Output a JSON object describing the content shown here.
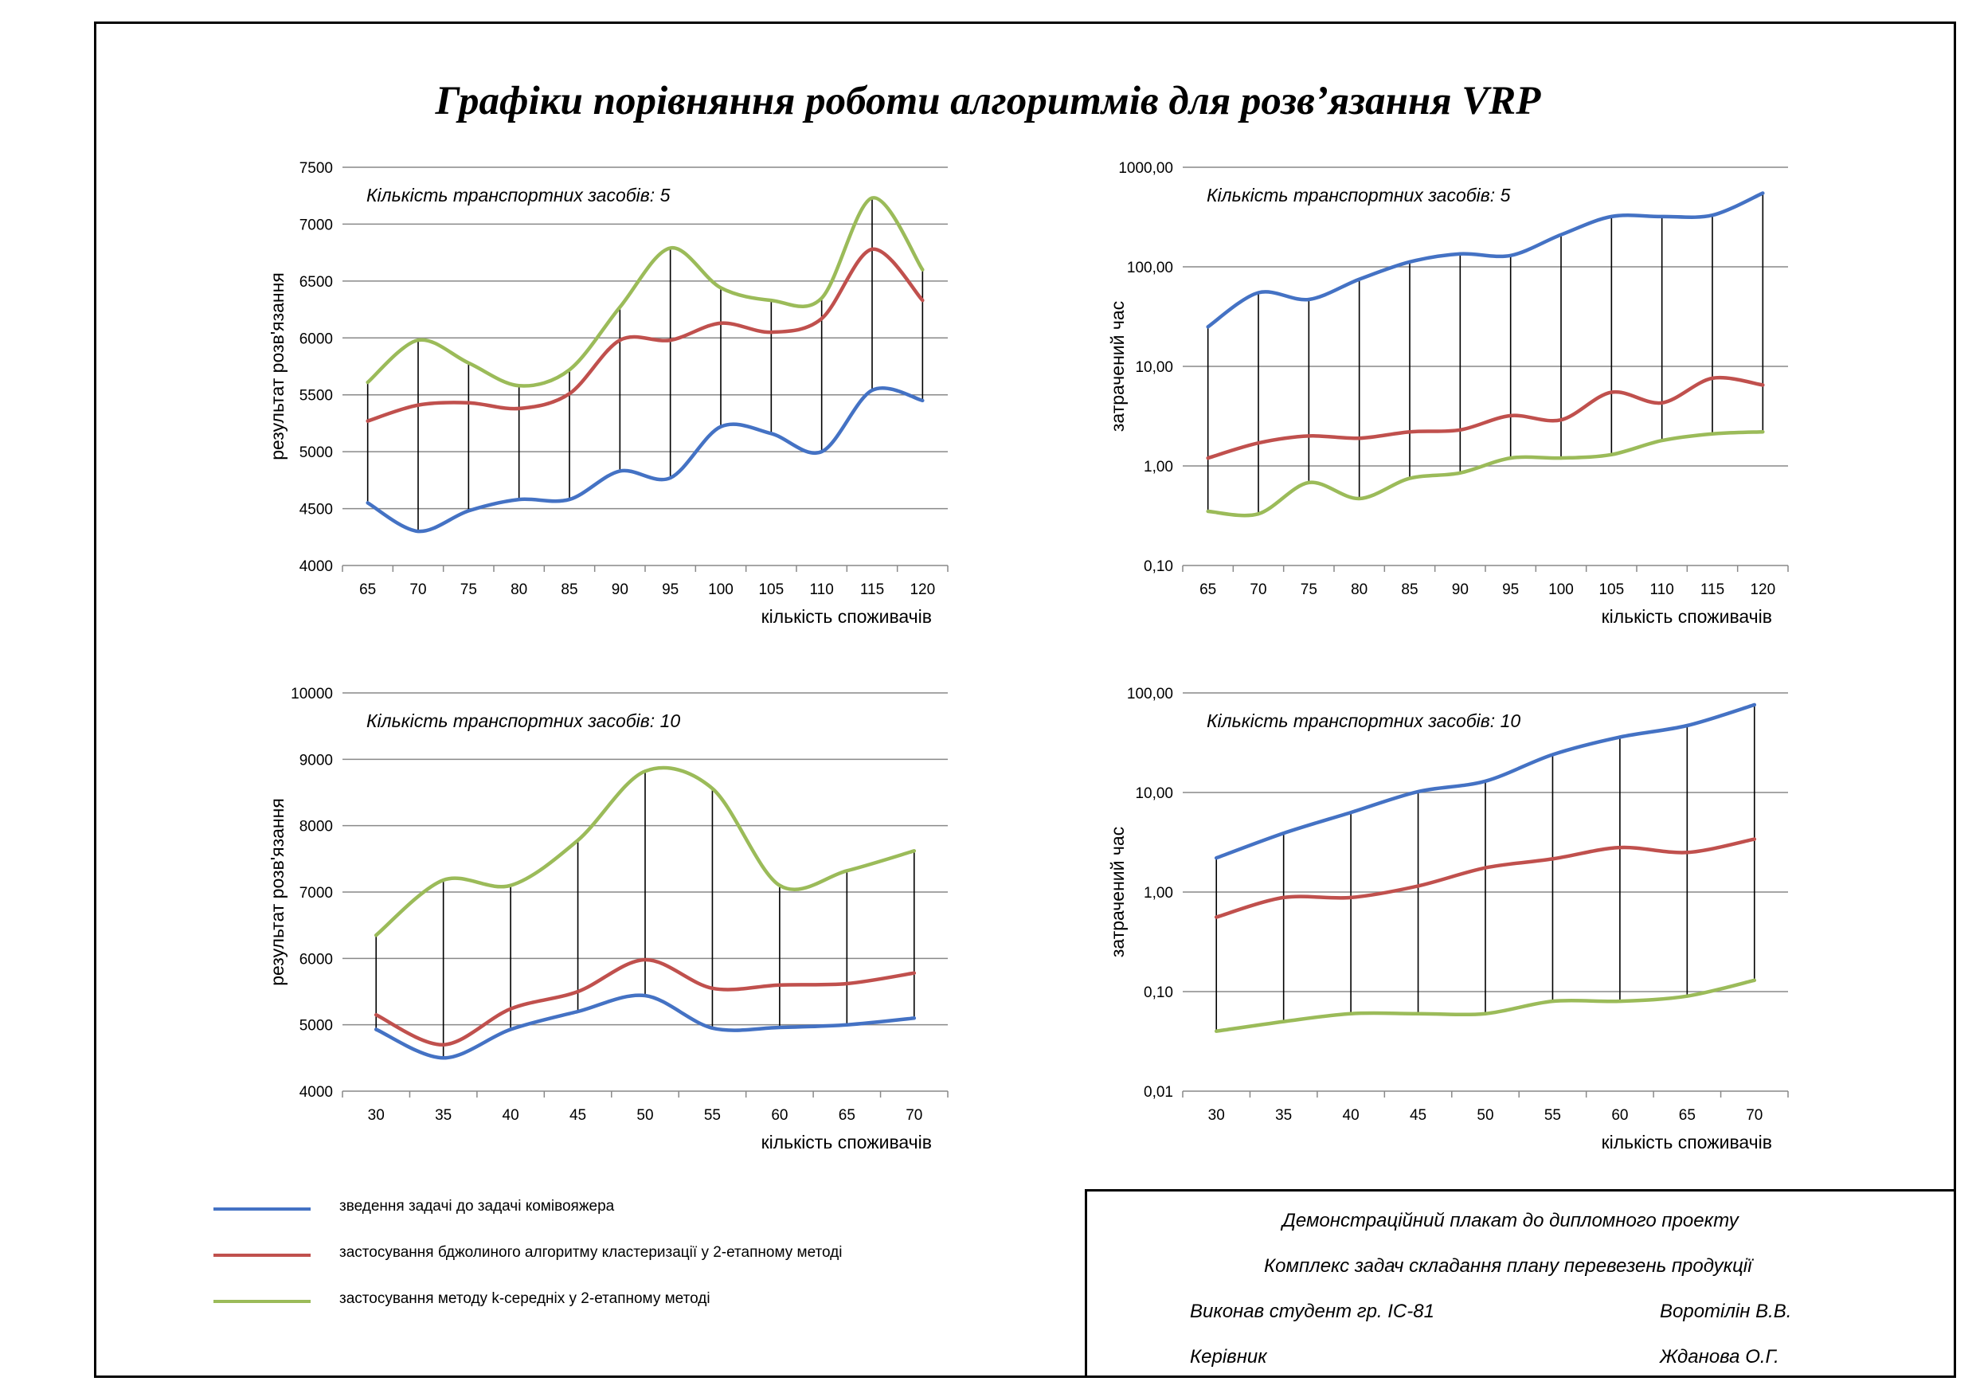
{
  "poster": {
    "title": "Графіки порівняння роботи алгоритмів для розв’язання VRP"
  },
  "colors": {
    "series": [
      "#4472c4",
      "#c0504d",
      "#9bbb59"
    ],
    "grid": "#898989",
    "dropline": "#000000"
  },
  "legend": {
    "items": [
      {
        "label": "зведення задачі до задачі комівояжера",
        "color": "#4472c4"
      },
      {
        "label": "застосування бджолиного алгоритму кластеризації у 2-етапному методі",
        "color": "#c0504d"
      },
      {
        "label": "застосування методу k-середніх у 2-етапному методі",
        "color": "#9bbb59"
      }
    ]
  },
  "stamp": {
    "line1": "Демонстраційний плакат до дипломного проекту",
    "line2": "Комплекс задач складання плану перевезень продукції",
    "performed_label": "Виконав студент гр. ІС-81",
    "performed_name": "Воротілін В.В.",
    "supervisor_label": "Керівник",
    "supervisor_name": "Жданова О.Г."
  },
  "chart_data": [
    {
      "type": "line",
      "annotation": "Кількість транспортних засобів: 5",
      "xlabel": "кількість споживачів",
      "ylabel": "результат розв'язання",
      "log": false,
      "ylim": [
        4000,
        7500
      ],
      "yticks": [
        4000,
        4500,
        5000,
        5500,
        6000,
        6500,
        7000,
        7500
      ],
      "ytick_labels": [
        "4000",
        "4500",
        "5000",
        "5500",
        "6000",
        "6500",
        "7000",
        "7500"
      ],
      "categories": [
        "65",
        "70",
        "75",
        "80",
        "85",
        "90",
        "95",
        "100",
        "105",
        "110",
        "115",
        "120"
      ],
      "grid": true,
      "drop_lines": true,
      "series": [
        {
          "values": [
            4550,
            4300,
            4480,
            4580,
            4580,
            4830,
            4770,
            5220,
            5160,
            5000,
            5540,
            5450
          ]
        },
        {
          "values": [
            5270,
            5410,
            5430,
            5380,
            5510,
            5980,
            5980,
            6130,
            6050,
            6170,
            6780,
            6330
          ]
        },
        {
          "values": [
            5610,
            5980,
            5780,
            5580,
            5720,
            6270,
            6790,
            6440,
            6330,
            6350,
            7230,
            6600
          ]
        }
      ]
    },
    {
      "type": "line",
      "annotation": "Кількість транспортних засобів: 5",
      "xlabel": "кількість споживачів",
      "ylabel": "затрачений час",
      "log": true,
      "ylim": [
        0.1,
        1000
      ],
      "yticks": [
        0.1,
        1,
        10,
        100,
        1000
      ],
      "ytick_labels": [
        "0,10",
        "1,00",
        "10,00",
        "100,00",
        "1000,00"
      ],
      "categories": [
        "65",
        "70",
        "75",
        "80",
        "85",
        "90",
        "95",
        "100",
        "105",
        "110",
        "115",
        "120"
      ],
      "grid": true,
      "drop_lines": true,
      "series": [
        {
          "values": [
            25,
            55,
            47,
            75,
            112,
            135,
            130,
            210,
            320,
            320,
            330,
            550
          ]
        },
        {
          "values": [
            1.2,
            1.7,
            2.0,
            1.9,
            2.2,
            2.3,
            3.2,
            2.9,
            5.5,
            4.3,
            7.6,
            6.5
          ]
        },
        {
          "values": [
            0.35,
            0.33,
            0.68,
            0.47,
            0.75,
            0.85,
            1.2,
            1.2,
            1.3,
            1.8,
            2.1,
            2.2
          ]
        }
      ]
    },
    {
      "type": "line",
      "annotation": "Кількість транспортних засобів: 10",
      "xlabel": "кількість споживачів",
      "ylabel": "результат розв'язання",
      "log": false,
      "ylim": [
        4000,
        10000
      ],
      "yticks": [
        4000,
        5000,
        6000,
        7000,
        8000,
        9000,
        10000
      ],
      "ytick_labels": [
        "4000",
        "5000",
        "6000",
        "7000",
        "8000",
        "9000",
        "10000"
      ],
      "categories": [
        "30",
        "35",
        "40",
        "45",
        "50",
        "55",
        "60",
        "65",
        "70"
      ],
      "grid": true,
      "drop_lines": true,
      "series": [
        {
          "values": [
            4930,
            4500,
            4930,
            5200,
            5440,
            4950,
            4960,
            5000,
            5100
          ]
        },
        {
          "values": [
            5150,
            4700,
            5240,
            5500,
            5980,
            5550,
            5600,
            5620,
            5780
          ]
        },
        {
          "values": [
            6350,
            7180,
            7100,
            7780,
            8820,
            8560,
            7100,
            7320,
            7620
          ]
        }
      ]
    },
    {
      "type": "line",
      "annotation": "Кількість транспортних засобів: 10",
      "xlabel": "кількість споживачів",
      "ylabel": "затрачений час",
      "log": true,
      "ylim": [
        0.01,
        100
      ],
      "yticks": [
        0.01,
        0.1,
        1,
        10,
        100
      ],
      "ytick_labels": [
        "0,01",
        "0,10",
        "1,00",
        "10,00",
        "100,00"
      ],
      "categories": [
        "30",
        "35",
        "40",
        "45",
        "50",
        "55",
        "60",
        "65",
        "70"
      ],
      "grid": true,
      "drop_lines": true,
      "series": [
        {
          "values": [
            2.2,
            3.9,
            6.3,
            10.2,
            13,
            24,
            36,
            47,
            76
          ]
        },
        {
          "values": [
            0.56,
            0.88,
            0.88,
            1.15,
            1.75,
            2.15,
            2.8,
            2.5,
            3.4
          ]
        },
        {
          "values": [
            0.04,
            0.05,
            0.06,
            0.06,
            0.06,
            0.08,
            0.08,
            0.09,
            0.13
          ]
        }
      ]
    }
  ]
}
